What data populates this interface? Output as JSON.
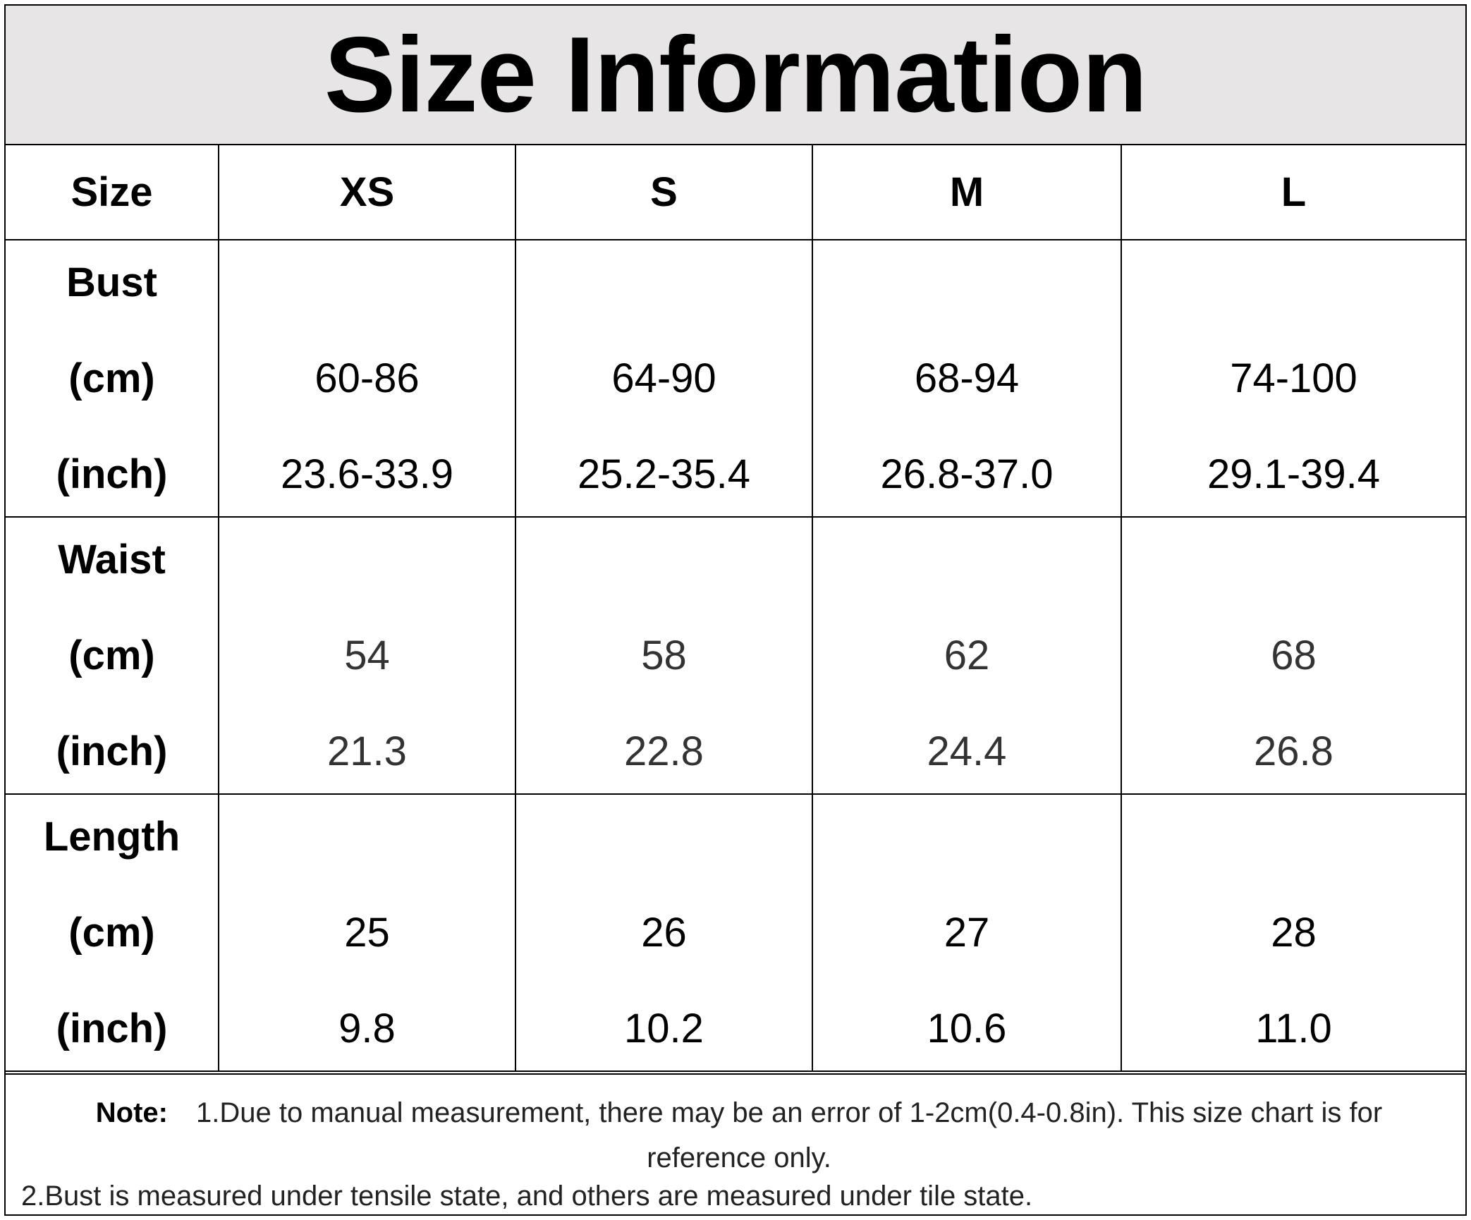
{
  "title": "Size Information",
  "header": {
    "label": "Size",
    "sizes": [
      "XS",
      "S",
      "M",
      "L"
    ]
  },
  "rows": [
    {
      "name": "Bust",
      "unit_cm": "(cm)",
      "unit_inch": "(inch)",
      "cm": [
        "60-86",
        "64-90",
        "68-94",
        "74-100"
      ],
      "inch": [
        "23.6-33.9",
        "25.2-35.4",
        "26.8-37.0",
        "29.1-39.4"
      ]
    },
    {
      "name": "Waist",
      "unit_cm": "(cm)",
      "unit_inch": "(inch)",
      "cm": [
        "54",
        "58",
        "62",
        "68"
      ],
      "inch": [
        "21.3",
        "22.8",
        "24.4",
        "26.8"
      ]
    },
    {
      "name": "Length",
      "unit_cm": "(cm)",
      "unit_inch": "(inch)",
      "cm": [
        "25",
        "26",
        "27",
        "28"
      ],
      "inch": [
        "9.8",
        "10.2",
        "10.6",
        "11.0"
      ]
    }
  ],
  "note": {
    "label": "Note:",
    "line1": "1.Due to manual measurement, there may be an error of 1-2cm(0.4-0.8in). This size chart is for reference only.",
    "line2": "2.Bust is measured under tensile state, and others are measured under tile state."
  }
}
